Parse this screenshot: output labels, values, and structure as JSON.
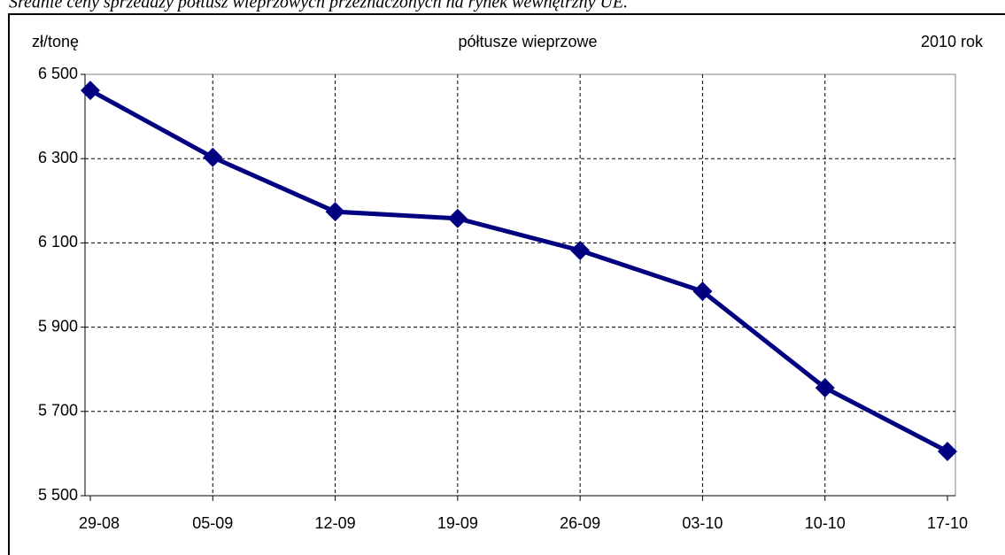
{
  "chart_data": {
    "type": "line",
    "title": "Średnie ceny sprzedaży półtusz wieprzowych przeznaczonych na rynek wewnętrzny UE.",
    "subtitle": "półtusze wieprzowe",
    "y_label": "zł/tonę",
    "annotation": "2010 rok",
    "categories": [
      "29-08",
      "05-09",
      "12-09",
      "19-09",
      "26-09",
      "03-10",
      "10-10",
      "17-10"
    ],
    "series": [
      {
        "name": "półtusze wieprzowe",
        "color": "#000080",
        "values": [
          6462,
          6303,
          6174,
          6158,
          6082,
          5985,
          5756,
          5605
        ]
      }
    ],
    "ylim": [
      5500,
      6500
    ],
    "yticks": [
      {
        "value": 5500,
        "label": "5 500"
      },
      {
        "value": 5700,
        "label": "5 700"
      },
      {
        "value": 5900,
        "label": "5 900"
      },
      {
        "value": 6100,
        "label": "6 100"
      },
      {
        "value": 6300,
        "label": "6 300"
      },
      {
        "value": 6500,
        "label": "6 500"
      }
    ],
    "grid": true
  }
}
